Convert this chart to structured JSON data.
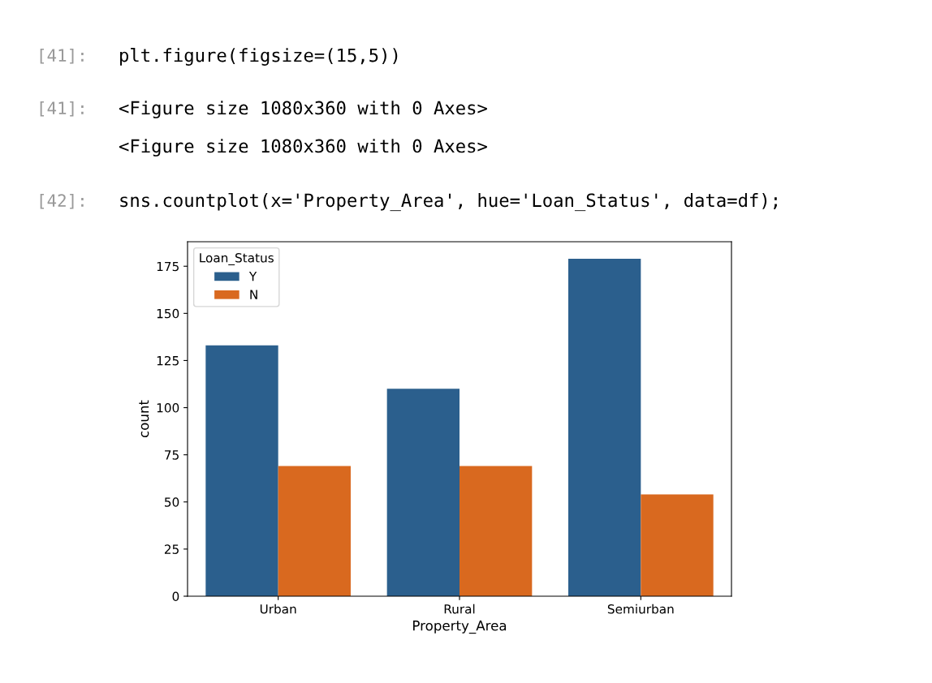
{
  "chart_data": {
    "type": "bar",
    "xlabel": "Property_Area",
    "ylabel": "count",
    "legend_title": "Loan_Status",
    "categories": [
      "Urban",
      "Rural",
      "Semiurban"
    ],
    "series": [
      {
        "name": "Y",
        "color": "#2b5f8d",
        "values": [
          133,
          110,
          179
        ]
      },
      {
        "name": "N",
        "color": "#d9691f",
        "values": [
          69,
          69,
          54
        ]
      }
    ],
    "ylim": [
      0,
      188
    ],
    "yticks": [
      0,
      25,
      50,
      75,
      100,
      125,
      150,
      175
    ],
    "grid": false,
    "legend": "top left",
    "annotations": [
      "[41]:",
      "plt.figure(figsize=(15,5))",
      "[41]:",
      "<Figure size 1080x360 with 0 Axes>",
      "<Figure size 1080x360 with 0 Axes>",
      "[42]:",
      "sns.countplot(x='Property_Area', hue='Loan_Status', data=df);"
    ]
  }
}
